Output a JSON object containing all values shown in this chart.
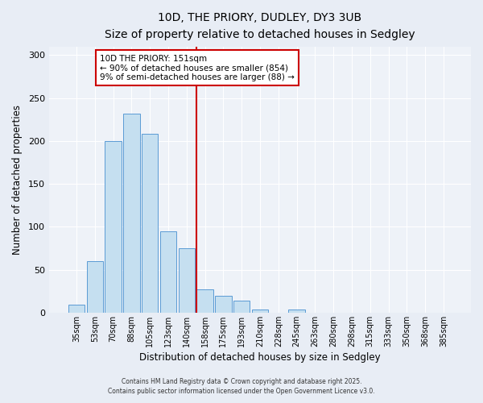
{
  "title": "10D, THE PRIORY, DUDLEY, DY3 3UB",
  "subtitle": "Size of property relative to detached houses in Sedgley",
  "xlabel": "Distribution of detached houses by size in Sedgley",
  "ylabel": "Number of detached properties",
  "bar_labels": [
    "35sqm",
    "53sqm",
    "70sqm",
    "88sqm",
    "105sqm",
    "123sqm",
    "140sqm",
    "158sqm",
    "175sqm",
    "193sqm",
    "210sqm",
    "228sqm",
    "245sqm",
    "263sqm",
    "280sqm",
    "298sqm",
    "315sqm",
    "333sqm",
    "350sqm",
    "368sqm",
    "385sqm"
  ],
  "bar_values": [
    9,
    60,
    200,
    232,
    208,
    95,
    75,
    27,
    20,
    14,
    4,
    0,
    4,
    0,
    0,
    0,
    0,
    0,
    0,
    0,
    0
  ],
  "bar_color": "#c5dff0",
  "bar_edge_color": "#5b9bd5",
  "vline_color": "#cc0000",
  "ylim": [
    0,
    310
  ],
  "yticks": [
    0,
    50,
    100,
    150,
    200,
    250,
    300
  ],
  "annotation_title": "10D THE PRIORY: 151sqm",
  "annotation_line1": "← 90% of detached houses are smaller (854)",
  "annotation_line2": "9% of semi-detached houses are larger (88) →",
  "annotation_box_color": "#ffffff",
  "annotation_box_edge_color": "#cc0000",
  "footer1": "Contains HM Land Registry data © Crown copyright and database right 2025.",
  "footer2": "Contains public sector information licensed under the Open Government Licence v3.0.",
  "background_color": "#e8edf5",
  "plot_background_color": "#eef2f8",
  "grid_color": "#ffffff"
}
